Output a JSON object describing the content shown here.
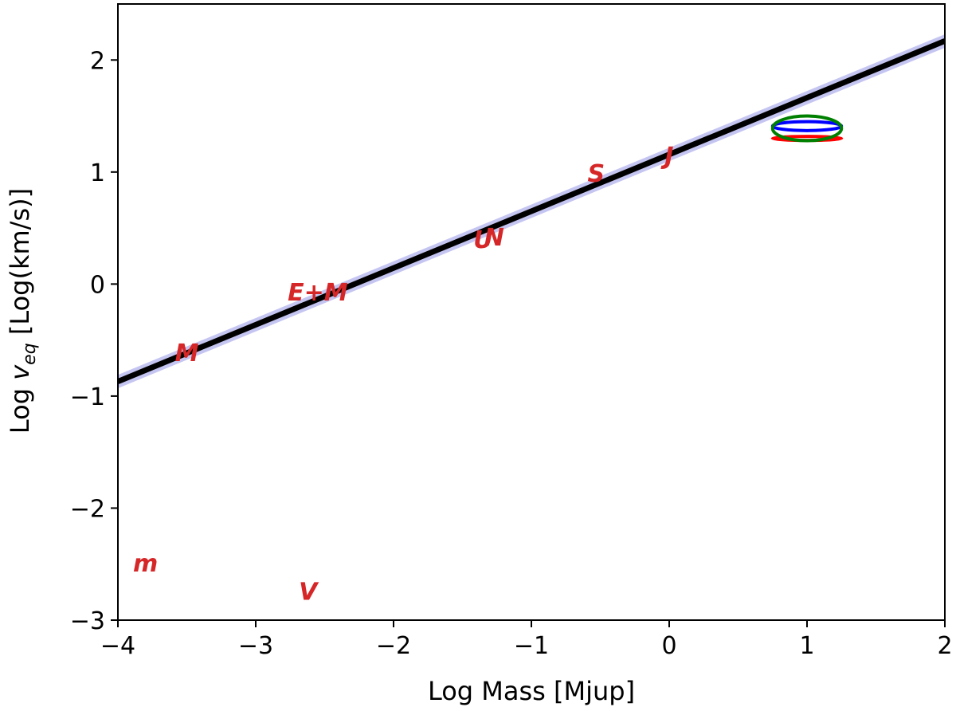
{
  "chart_data": {
    "type": "scatter",
    "title": "",
    "xlabel": "Log Mass [Mjup]",
    "ylabel_prefix": "Log ",
    "ylabel_var": "v",
    "ylabel_sub": "eq",
    "ylabel_suffix": " [Log(km/s)]",
    "xlim": [
      -4,
      2
    ],
    "ylim": [
      -3,
      2.5
    ],
    "xticks": [
      -4,
      -3,
      -2,
      -1,
      0,
      1,
      2
    ],
    "xtick_labels": [
      "−4",
      "−3",
      "−2",
      "−1",
      "0",
      "1",
      "2"
    ],
    "yticks": [
      -3,
      -2,
      -1,
      0,
      1,
      2
    ],
    "ytick_labels": [
      "−3",
      "−2",
      "−1",
      "0",
      "1",
      "2"
    ],
    "grid": false,
    "fit_line": {
      "x": [
        -4,
        2
      ],
      "y": [
        -0.87,
        2.17
      ],
      "color": "#000000",
      "band_halfwidth": 0.06,
      "band_color": "#8c8ce6"
    },
    "points": [
      {
        "label": "M",
        "x": -3.5,
        "y": -0.62,
        "color": "#d62728"
      },
      {
        "label": "E+M",
        "x": -2.55,
        "y": -0.08,
        "color": "#d62728"
      },
      {
        "label": "U",
        "x": -1.35,
        "y": 0.39,
        "color": "#d62728"
      },
      {
        "label": "N",
        "x": -1.27,
        "y": 0.41,
        "color": "#d62728"
      },
      {
        "label": "S",
        "x": -0.53,
        "y": 0.98,
        "color": "#d62728"
      },
      {
        "label": "J",
        "x": 0.0,
        "y": 1.14,
        "color": "#d62728"
      },
      {
        "label": "m",
        "x": -3.8,
        "y": -2.5,
        "color": "#d62728"
      },
      {
        "label": "V",
        "x": -2.62,
        "y": -2.75,
        "color": "#d62728"
      }
    ],
    "ellipses": [
      {
        "cx": 1.0,
        "cy": 1.3,
        "rx": 0.25,
        "ry": 0.018,
        "color": "#ff0000"
      },
      {
        "cx": 1.0,
        "cy": 1.41,
        "rx": 0.25,
        "ry": 0.04,
        "color": "#0000ff"
      },
      {
        "cx": 1.0,
        "cy": 1.39,
        "rx": 0.25,
        "ry": 0.11,
        "color": "#008000"
      }
    ]
  }
}
